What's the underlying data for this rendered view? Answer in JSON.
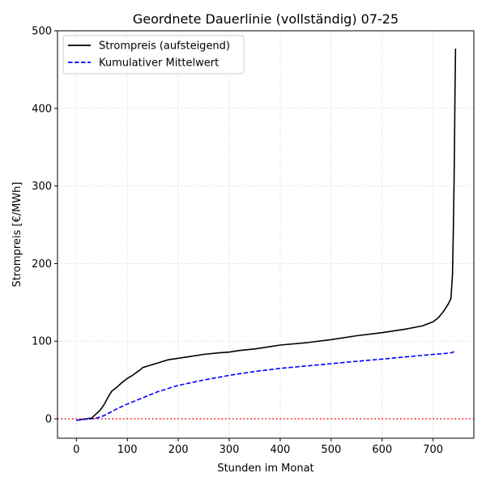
{
  "chart_data": {
    "type": "line",
    "title": "Geordnete Dauerlinie (vollständig) 07-25",
    "xlabel": "Stunden im Monat",
    "ylabel": "Strompreis [€/MWh]",
    "xlim": [
      -37,
      780
    ],
    "ylim": [
      -25,
      500
    ],
    "xticks": [
      0,
      100,
      200,
      300,
      400,
      500,
      600,
      700
    ],
    "yticks": [
      0,
      100,
      200,
      300,
      400,
      500
    ],
    "grid": true,
    "legend_position": "top-left",
    "reference_line": {
      "y": 0,
      "color": "#ff0000",
      "style": "dotted"
    },
    "series": [
      {
        "name": "Strompreis (aufsteigend)",
        "color": "#000000",
        "style": "solid",
        "x": [
          0,
          10,
          20,
          30,
          35,
          40,
          45,
          50,
          55,
          60,
          65,
          70,
          80,
          90,
          100,
          110,
          125,
          130,
          140,
          150,
          160,
          170,
          180,
          200,
          220,
          250,
          280,
          300,
          320,
          350,
          380,
          400,
          450,
          500,
          550,
          600,
          620,
          650,
          680,
          700,
          710,
          720,
          730,
          735,
          738,
          740,
          741,
          742,
          743,
          744
        ],
        "values": [
          -2,
          -1,
          0,
          1,
          4,
          7,
          10,
          14,
          19,
          25,
          31,
          36,
          41,
          47,
          52,
          56,
          63,
          66,
          68,
          70,
          72,
          74,
          76,
          78,
          80,
          83,
          85,
          86,
          88,
          90,
          93,
          95,
          98,
          102,
          107,
          111,
          113,
          116,
          120,
          125,
          130,
          138,
          148,
          155,
          185,
          250,
          300,
          350,
          420,
          477
        ]
      },
      {
        "name": "Kumulativer Mittelwert",
        "color": "#0000ff",
        "style": "dashed",
        "x": [
          0,
          10,
          20,
          30,
          40,
          50,
          60,
          80,
          100,
          130,
          160,
          200,
          250,
          300,
          350,
          400,
          450,
          500,
          550,
          600,
          650,
          700,
          720,
          735,
          744
        ],
        "values": [
          -2,
          -1,
          -0.5,
          0,
          1,
          3,
          6,
          13,
          19,
          27,
          35,
          43,
          50,
          56,
          61,
          65,
          68,
          71,
          74,
          77,
          80,
          83,
          84,
          85,
          87
        ]
      }
    ]
  }
}
